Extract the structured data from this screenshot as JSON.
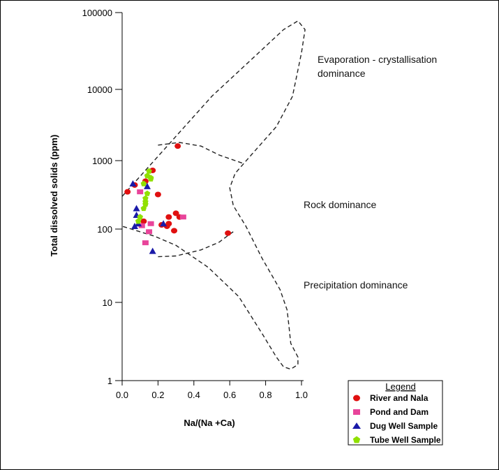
{
  "chart_data": {
    "type": "scatter",
    "title": "",
    "xlabel": "Na/(Na +Ca)",
    "ylabel": "Total dissolved solids (ppm)",
    "xlim": [
      0,
      1
    ],
    "ylim": [
      1,
      100000
    ],
    "yscale": "log",
    "x_ticks": [
      "0.0",
      "0.2",
      "0.4",
      "0.6",
      "0.8",
      "1.0"
    ],
    "y_ticks": [
      "1",
      "10",
      "100",
      "1000",
      "10000",
      "100000"
    ],
    "regions": [
      {
        "label": "Evaporation - crystallisation dominance",
        "lines": [
          "Evaporation - crystallisation",
          "dominance"
        ]
      },
      {
        "label": "Rock dominance",
        "lines": [
          "Rock dominance"
        ]
      },
      {
        "label": "Precipitation dominance",
        "lines": [
          "Precipitation dominance"
        ]
      }
    ],
    "legend": {
      "title": "Legend",
      "placement": "bottom-right",
      "entries": [
        "River and Nala",
        "Pond and Dam",
        "Dug Well Sample",
        "Tube Well Sample"
      ]
    },
    "series": [
      {
        "name": "River and Nala",
        "marker": "circle",
        "color": "#e01010",
        "points": [
          [
            0.31,
            1600
          ],
          [
            0.03,
            350
          ],
          [
            0.17,
            720
          ],
          [
            0.13,
            500
          ],
          [
            0.2,
            320
          ],
          [
            0.3,
            170
          ],
          [
            0.32,
            150
          ],
          [
            0.26,
            150
          ],
          [
            0.26,
            120
          ],
          [
            0.22,
            115
          ],
          [
            0.25,
            110
          ],
          [
            0.29,
            95
          ],
          [
            0.59,
            88
          ],
          [
            0.12,
            130
          ],
          [
            0.07,
            440
          ]
        ]
      },
      {
        "name": "Pond and Dam",
        "marker": "square",
        "color": "#e8449a",
        "points": [
          [
            0.16,
            120
          ],
          [
            0.34,
            150
          ],
          [
            0.13,
            65
          ],
          [
            0.15,
            92
          ],
          [
            0.11,
            112
          ],
          [
            0.1,
            350
          ]
        ]
      },
      {
        "name": "Dug Well Sample",
        "marker": "triangle",
        "color": "#1a1aa8",
        "points": [
          [
            0.17,
            50
          ],
          [
            0.08,
            200
          ],
          [
            0.08,
            160
          ],
          [
            0.09,
            120
          ],
          [
            0.07,
            110
          ],
          [
            0.14,
            420
          ],
          [
            0.06,
            460
          ],
          [
            0.23,
            120
          ]
        ]
      },
      {
        "name": "Tube Well Sample",
        "marker": "pentagon",
        "color": "#90e000",
        "points": [
          [
            0.15,
            700
          ],
          [
            0.14,
            600
          ],
          [
            0.16,
            540
          ],
          [
            0.12,
            460
          ],
          [
            0.14,
            330
          ],
          [
            0.13,
            280
          ],
          [
            0.13,
            230
          ],
          [
            0.12,
            200
          ],
          [
            0.09,
            130
          ],
          [
            0.1,
            150
          ],
          [
            0.16,
            560
          ],
          [
            0.13,
            250
          ]
        ]
      }
    ]
  }
}
